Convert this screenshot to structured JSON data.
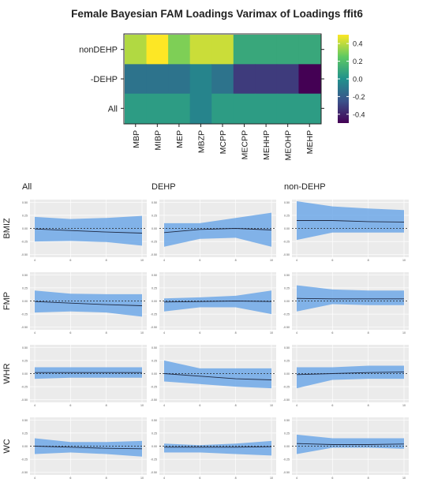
{
  "chart_data": [
    {
      "type": "heatmap",
      "title": "Female Bayesian FAM Loadings Varimax of Loadings ffit6",
      "rows": [
        "nonDEHP",
        "-DEHP",
        "All"
      ],
      "columns": [
        "MBP",
        "MIBP",
        "MEP",
        "MBZP",
        "MCPP",
        "MECPP",
        "MEHHP",
        "MEOHP",
        "MEHP"
      ],
      "values": [
        [
          0.38,
          0.5,
          0.3,
          0.42,
          0.42,
          0.1,
          0.1,
          0.1,
          0.1
        ],
        [
          -0.12,
          -0.12,
          -0.12,
          -0.05,
          -0.12,
          -0.32,
          -0.32,
          -0.32,
          -0.5
        ],
        [
          0.05,
          0.05,
          0.05,
          -0.05,
          0.05,
          0.05,
          0.05,
          0.05,
          0.05
        ]
      ],
      "colorbar": {
        "range": [
          -0.5,
          0.5
        ],
        "ticks": [
          "0.4",
          "0.2",
          "0.0",
          "-0.2",
          "-0.4"
        ],
        "tick_values": [
          0.4,
          0.2,
          0.0,
          -0.2,
          -0.4
        ],
        "colormap": [
          "#440154",
          "#3b528b",
          "#21918c",
          "#5ec962",
          "#fde725"
        ]
      }
    },
    {
      "type": "line",
      "layout": "facet-grid",
      "column_titles": [
        "All",
        "DEHP",
        "non-DEHP"
      ],
      "row_titles": [
        "BMIZ",
        "FMP",
        "WHR",
        "WC"
      ],
      "x": [
        4,
        6,
        8,
        10
      ],
      "x_ticks": [
        "4",
        "6",
        "8",
        "10"
      ],
      "y_tick_labels": [
        "0.50",
        "0.25",
        "0.00",
        "-0.25",
        "-0.50"
      ],
      "y_ticks": [
        0.5,
        0.25,
        0.0,
        -0.25,
        -0.5
      ],
      "ylim": [
        -0.55,
        0.55
      ],
      "band_color": "#6ea8e8",
      "panels": [
        [
          {
            "mean": [
              -0.01,
              -0.04,
              -0.07,
              -0.09
            ],
            "lower": [
              -0.25,
              -0.24,
              -0.26,
              -0.33
            ],
            "upper": [
              0.22,
              0.18,
              0.2,
              0.24
            ]
          },
          {
            "mean": [
              -0.08,
              -0.02,
              0.0,
              -0.03
            ],
            "lower": [
              -0.35,
              -0.2,
              -0.18,
              -0.35
            ],
            "upper": [
              0.1,
              0.1,
              0.2,
              0.3
            ]
          },
          {
            "mean": [
              0.15,
              0.15,
              0.13,
              0.12
            ],
            "lower": [
              -0.22,
              -0.08,
              -0.08,
              -0.08
            ],
            "upper": [
              0.52,
              0.42,
              0.38,
              0.35
            ]
          }
        ],
        [
          {
            "mean": [
              -0.01,
              -0.04,
              -0.07,
              -0.09
            ],
            "lower": [
              -0.22,
              -0.2,
              -0.22,
              -0.3
            ],
            "upper": [
              0.2,
              0.14,
              0.13,
              0.13
            ]
          },
          {
            "mean": [
              -0.02,
              -0.01,
              0.0,
              -0.01
            ],
            "lower": [
              -0.2,
              -0.12,
              -0.12,
              -0.25
            ],
            "upper": [
              0.05,
              0.07,
              0.1,
              0.2
            ]
          },
          {
            "mean": [
              0.05,
              0.04,
              0.04,
              0.04
            ],
            "lower": [
              -0.2,
              -0.06,
              -0.08,
              -0.08
            ],
            "upper": [
              0.3,
              0.22,
              0.2,
              0.2
            ]
          }
        ],
        [
          {
            "mean": [
              0.02,
              0.02,
              0.02,
              0.02
            ],
            "lower": [
              -0.1,
              -0.08,
              -0.08,
              -0.08
            ],
            "upper": [
              0.12,
              0.12,
              0.12,
              0.12
            ]
          },
          {
            "mean": [
              0.0,
              -0.05,
              -0.1,
              -0.12
            ],
            "lower": [
              -0.15,
              -0.2,
              -0.25,
              -0.28
            ],
            "upper": [
              0.25,
              0.1,
              0.1,
              0.1
            ]
          },
          {
            "mean": [
              -0.02,
              0.0,
              0.02,
              0.03
            ],
            "lower": [
              -0.28,
              -0.12,
              -0.1,
              -0.1
            ],
            "upper": [
              0.12,
              0.12,
              0.15,
              0.15
            ]
          }
        ],
        [
          {
            "mean": [
              0.0,
              -0.02,
              -0.04,
              -0.05
            ],
            "lower": [
              -0.15,
              -0.12,
              -0.15,
              -0.2
            ],
            "upper": [
              0.15,
              0.08,
              0.08,
              0.1
            ]
          },
          {
            "mean": [
              -0.02,
              -0.02,
              -0.02,
              -0.01
            ],
            "lower": [
              -0.12,
              -0.12,
              -0.15,
              -0.18
            ],
            "upper": [
              0.05,
              0.02,
              0.05,
              0.1
            ]
          },
          {
            "mean": [
              0.05,
              0.03,
              0.03,
              0.04
            ],
            "lower": [
              -0.15,
              -0.03,
              -0.03,
              -0.05
            ],
            "upper": [
              0.22,
              0.15,
              0.15,
              0.15
            ]
          }
        ]
      ]
    }
  ]
}
